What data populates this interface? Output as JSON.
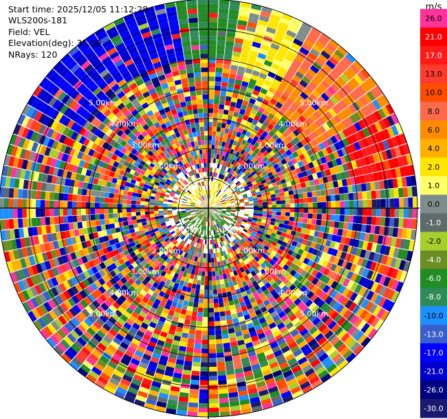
{
  "info": {
    "start_time": "Start time: 2025/12/05 11:12:28",
    "instrument": "WLS200s-181",
    "field": "Field: VEL",
    "elevation": "Elevation(deg): 35.00",
    "nrays": "NRays: 120"
  },
  "colorbar": {
    "unit": "m/s",
    "levels": [
      {
        "label": "26.0",
        "color": "#ff3399"
      },
      {
        "label": "21.0",
        "color": "#ff0000"
      },
      {
        "label": "17.0",
        "color": "#ff1a1a"
      },
      {
        "label": "13.0",
        "color": "#ff3b30"
      },
      {
        "label": "10.0",
        "color": "#ff4d00"
      },
      {
        "label": "8.0",
        "color": "#ff6a4d"
      },
      {
        "label": "6.0",
        "color": "#ff8c00"
      },
      {
        "label": "4.0",
        "color": "#ffb000"
      },
      {
        "label": "2.0",
        "color": "#ffe600"
      },
      {
        "label": "1.0",
        "color": "#ffff66"
      },
      {
        "label": "0.0",
        "color": "#7f8c8c"
      },
      {
        "label": "-1.0",
        "color": "#5f6b6b"
      },
      {
        "label": "-2.0",
        "color": "#a6cf2e"
      },
      {
        "label": "-4.0",
        "color": "#6b8e23"
      },
      {
        "label": "-6.0",
        "color": "#228b22"
      },
      {
        "label": "-8.0",
        "color": "#2e8b57"
      },
      {
        "label": "-10.0",
        "color": "#1e8fff"
      },
      {
        "label": "-13.0",
        "color": "#3a5fcd"
      },
      {
        "label": "-17.0",
        "color": "#0000ff"
      },
      {
        "label": "-21.0",
        "color": "#0000cd"
      },
      {
        "label": "-26.0",
        "color": "#000080"
      },
      {
        "label": "-30.0",
        "color": "#191970"
      }
    ]
  },
  "chart_data": {
    "type": "heatmap",
    "projection": "polar (PPI)",
    "field": "VEL",
    "units": "m/s",
    "nrays": 120,
    "elevation_deg": 35.0,
    "max_range_km": 7.0,
    "range_ring_labels": [
      "1.00km",
      "2.00km",
      "3.00km",
      "4.00km",
      "5.00km"
    ],
    "notable_regions": [
      {
        "azimuth_deg_range": [
          300,
          350
        ],
        "range_km": [
          5,
          7
        ],
        "value_ms": -17.0
      },
      {
        "azimuth_deg_range": [
          350,
          10
        ],
        "range_km": [
          5,
          7
        ],
        "value_ms": -6.0
      },
      {
        "azimuth_deg_range": [
          10,
          30
        ],
        "range_km": [
          4.5,
          7
        ],
        "value_ms": 2.0
      },
      {
        "azimuth_deg_range": [
          30,
          60
        ],
        "range_km": [
          4,
          7
        ],
        "value_ms": 8.0
      },
      {
        "azimuth_deg_range": [
          60,
          80
        ],
        "range_km": [
          5,
          7
        ],
        "value_ms": 21.0
      },
      {
        "azimuth_deg_range": [
          270,
          90
        ],
        "range_km": [
          0,
          1
        ],
        "value_ms": 2.0
      },
      {
        "azimuth_deg_range": [
          90,
          270
        ],
        "range_km": [
          0,
          1
        ],
        "value_ms": -4.0
      }
    ]
  }
}
